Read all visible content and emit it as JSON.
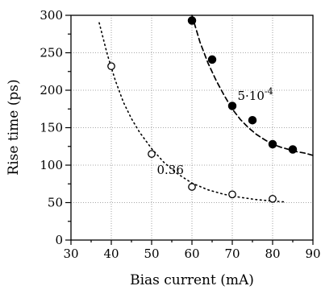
{
  "chart_data": {
    "type": "scatter",
    "xlabel": "Bias current (mA)",
    "ylabel": "Rise time (ps)",
    "xlim": [
      30,
      90
    ],
    "ylim": [
      0,
      300
    ],
    "xticks": [
      30,
      40,
      50,
      60,
      70,
      80,
      90
    ],
    "yticks": [
      0,
      50,
      100,
      150,
      200,
      250,
      300
    ],
    "grid": true,
    "series": [
      {
        "marker": "filled-circle",
        "fit_line": "dashed",
        "x": [
          60,
          65,
          70,
          75,
          80,
          85
        ],
        "y": [
          293,
          241,
          179,
          160,
          128,
          121
        ],
        "fit": {
          "x": [
            60,
            62,
            64,
            66,
            68,
            70,
            72,
            74,
            76,
            78,
            80,
            82,
            84,
            86,
            88,
            90
          ],
          "y": [
            300,
            264,
            236,
            213,
            193,
            175,
            161,
            150,
            141,
            134,
            128,
            124,
            121,
            118,
            116,
            113
          ]
        }
      },
      {
        "marker": "open-circle",
        "fit_line": "dotted",
        "x": [
          40,
          50,
          60,
          70,
          80
        ],
        "y": [
          232,
          115,
          71,
          61,
          55
        ],
        "fit": {
          "x": [
            37,
            39,
            41,
            43,
            45,
            47,
            50,
            53,
            56,
            60,
            64,
            68,
            72,
            76,
            80,
            83
          ],
          "y": [
            290,
            248,
            213,
            184,
            162,
            144,
            122,
            104,
            90,
            76,
            67,
            61,
            57,
            54,
            52,
            51
          ]
        }
      }
    ],
    "annotations": [
      {
        "text": "5·10",
        "sup": "-4",
        "x": 71.3,
        "y": 187
      },
      {
        "text": "0.36",
        "x": 51.3,
        "y": 88
      }
    ]
  }
}
